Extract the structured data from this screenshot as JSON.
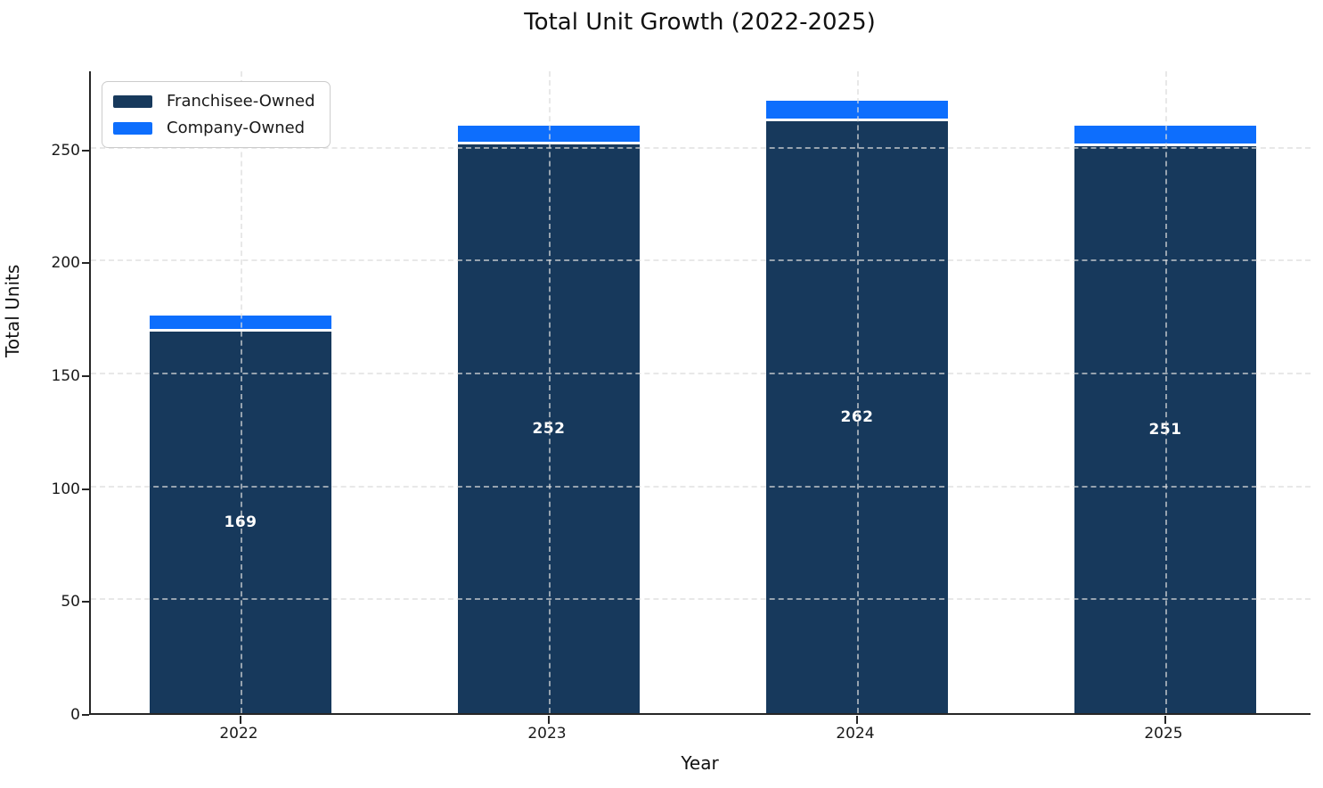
{
  "figure": {
    "title": "Total Unit Growth (2022-2025)",
    "xlabel": "Year",
    "ylabel": "Total Units"
  },
  "legend": {
    "position": "upper-left",
    "items": [
      {
        "label": "Franchisee-Owned",
        "color": "#17395C"
      },
      {
        "label": "Company-Owned",
        "color": "#0D6EFD"
      }
    ]
  },
  "chart_data": {
    "type": "bar",
    "stacked": true,
    "title": "Total Unit Growth (2022-2025)",
    "xlabel": "Year",
    "ylabel": "Total Units",
    "categories": [
      "2022",
      "2023",
      "2024",
      "2025"
    ],
    "series": [
      {
        "name": "Franchisee-Owned",
        "color": "#17395C",
        "values": [
          169,
          252,
          262,
          251
        ]
      },
      {
        "name": "Company-Owned",
        "color": "#0D6EFD",
        "values": [
          6,
          7,
          8,
          8
        ]
      }
    ],
    "bar_value_labels": [
      "169",
      "252",
      "262",
      "251"
    ],
    "totals": [
      175,
      259,
      270,
      259
    ],
    "ylim": [
      0,
      285
    ],
    "yticks": [
      0,
      50,
      100,
      150,
      200,
      250
    ],
    "grid": {
      "visible": true,
      "style": "dashed",
      "axes": "both",
      "drawn_over_bars": true
    },
    "legend_position": "upper-left",
    "bar_edge_color": "#FFFFFF"
  },
  "colors": {
    "franchisee": "#17395C",
    "company": "#0D6EFD",
    "spine": "#262626",
    "grid": "#DBDBDB",
    "text": "#1A1A1A",
    "bar_label": "#FFFFFF",
    "background": "#FFFFFF"
  }
}
